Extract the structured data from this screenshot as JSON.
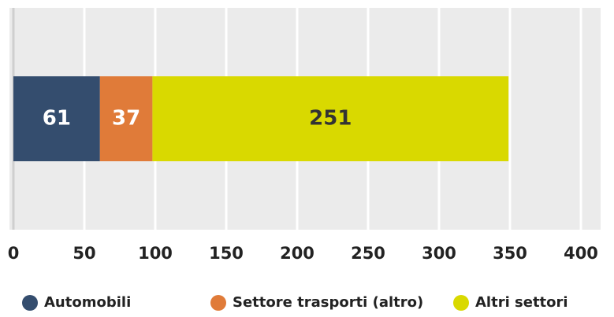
{
  "chart_data": {
    "type": "bar",
    "orientation": "horizontal",
    "stacked": true,
    "categories": [
      null
    ],
    "series": [
      {
        "name": "Automobili",
        "color": "#344d6e",
        "values": [
          61
        ]
      },
      {
        "name": "Settore trasporti (altro)",
        "color": "#e07b39",
        "values": [
          37
        ]
      },
      {
        "name": "Altri settori",
        "color": "#d9d900",
        "values": [
          251
        ]
      }
    ],
    "xlim": [
      0,
      400
    ],
    "xticks": [
      0,
      50,
      100,
      150,
      200,
      250,
      300,
      350,
      400
    ],
    "grid": true,
    "legend": "bottom"
  }
}
